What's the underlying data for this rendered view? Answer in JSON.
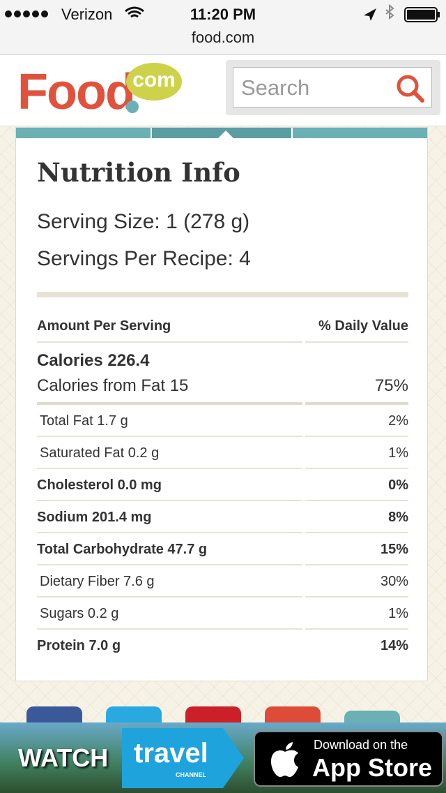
{
  "status_bar": {
    "carrier": "Verizon",
    "time": "11:20 PM",
    "url": "food.com"
  },
  "header": {
    "logo": "Food",
    "logo_badge": "com",
    "search_placeholder": "Search"
  },
  "nutrition": {
    "title": "Nutrition Info",
    "serving_size": "Serving Size: 1 (278 g)",
    "servings": "Servings Per Recipe: 4",
    "column_amount": "Amount Per Serving",
    "column_dv": "% Daily Value",
    "calories": "Calories 226.4",
    "calories_from_fat": "Calories from Fat 15",
    "calories_from_fat_dv": "75%",
    "rows": [
      {
        "label": "Total Fat 1.7 g",
        "dv": "2%",
        "bold": false
      },
      {
        "label": "Saturated Fat 0.2 g",
        "dv": "1%",
        "bold": false
      },
      {
        "label": "Cholesterol 0.0 mg",
        "dv": "0%",
        "bold": true
      },
      {
        "label": "Sodium 201.4 mg",
        "dv": "8%",
        "bold": true
      },
      {
        "label": "Total Carbohydrate 47.7 g",
        "dv": "15%",
        "bold": true
      },
      {
        "label": "Dietary Fiber 7.6 g",
        "dv": "30%",
        "bold": false
      },
      {
        "label": "Sugars 0.2 g",
        "dv": "1%",
        "bold": false
      },
      {
        "label": "Protein 7.0 g",
        "dv": "14%",
        "bold": true
      }
    ]
  },
  "ad": {
    "watch": "WATCH",
    "brand": "travel",
    "brand_sub": "CHANNEL",
    "store_top": "Download on the",
    "store_name": "App Store"
  }
}
